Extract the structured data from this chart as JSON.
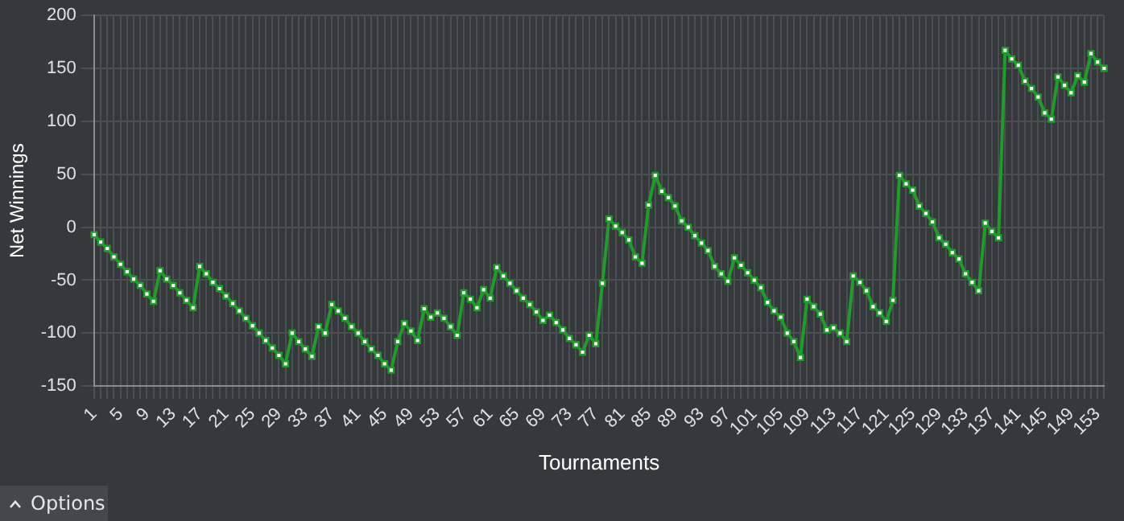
{
  "chart_data": {
    "type": "line",
    "xlabel": "Tournaments",
    "ylabel": "Net Winnings",
    "categories": [
      "1",
      null,
      null,
      null,
      "5",
      null,
      null,
      null,
      "9",
      null,
      null,
      null,
      "13",
      null,
      null,
      null,
      "17",
      null,
      null,
      null,
      "21",
      null,
      null,
      null,
      "25",
      null,
      null,
      null,
      "29",
      null,
      null,
      null,
      "33",
      null,
      null,
      null,
      "37",
      null,
      null,
      null,
      "41",
      null,
      null,
      null,
      "45",
      null,
      null,
      null,
      "49",
      null,
      null,
      null,
      "53",
      null,
      null,
      null,
      "57",
      null,
      null,
      null,
      "61",
      null,
      null,
      null,
      "65",
      null,
      null,
      null,
      "69",
      null,
      null,
      null,
      "73",
      null,
      null,
      null,
      "77",
      null,
      null,
      null,
      "81",
      null,
      null,
      null,
      "85",
      null,
      null,
      null,
      "89",
      null,
      null,
      null,
      "93",
      null,
      null,
      null,
      "97",
      null,
      null,
      null,
      "101",
      null,
      null,
      null,
      "105",
      null,
      null,
      null,
      "109",
      null,
      null,
      null,
      "113",
      null,
      null,
      null,
      "117",
      null,
      null,
      null,
      "121",
      null,
      null,
      null,
      "125",
      null,
      null,
      null,
      "129",
      null,
      null,
      null,
      "133",
      null,
      null,
      null,
      "137",
      null,
      null,
      null,
      "141",
      null,
      null,
      null,
      "145",
      null,
      null,
      null,
      "149",
      null,
      null,
      null,
      "153",
      null
    ],
    "series": [
      {
        "color": "#1e9e28",
        "values": [
          -7,
          -14,
          -20,
          -28,
          -35,
          -42,
          -49,
          -55,
          -63,
          -70,
          -41,
          -49,
          -55,
          -62,
          -69,
          -76,
          -37,
          -44,
          -52,
          -58,
          -65,
          -72,
          -79,
          -86,
          -93,
          -100,
          -107,
          -114,
          -121,
          -129,
          -100,
          -108,
          -115,
          -122,
          -94,
          -100,
          -73,
          -79,
          -86,
          -94,
          -100,
          -108,
          -115,
          -121,
          -129,
          -135,
          -108,
          -91,
          -98,
          -107,
          -77,
          -85,
          -81,
          -86,
          -94,
          -102,
          -62,
          -68,
          -76,
          -59,
          -67,
          -38,
          -46,
          -53,
          -60,
          -67,
          -73,
          -80,
          -88,
          -83,
          -90,
          -97,
          -105,
          -111,
          -118,
          -102,
          -110,
          -53,
          8,
          1,
          -5,
          -12,
          -28,
          -34,
          21,
          49,
          34,
          28,
          20,
          6,
          0,
          -8,
          -15,
          -22,
          -37,
          -44,
          -51,
          -29,
          -36,
          -43,
          -50,
          -57,
          -71,
          -79,
          -85,
          -100,
          -108,
          -123,
          -68,
          -75,
          -82,
          -97,
          -95,
          -100,
          -108,
          -46,
          -52,
          -60,
          -75,
          -81,
          -89,
          -69,
          49,
          41,
          35,
          20,
          13,
          5,
          -10,
          -16,
          -24,
          -30,
          -44,
          -52,
          -60,
          4,
          -4,
          -10,
          167,
          159,
          153,
          138,
          131,
          123,
          108,
          102,
          142,
          134,
          127,
          143,
          137,
          164,
          156,
          150
        ]
      }
    ],
    "ylim": [
      -150,
      200
    ],
    "yticks": [
      -150,
      -100,
      -50,
      0,
      50,
      100,
      150,
      200
    ],
    "grid": true,
    "marker": "square",
    "line_style": "solid",
    "annotations": [
      "Options"
    ]
  }
}
